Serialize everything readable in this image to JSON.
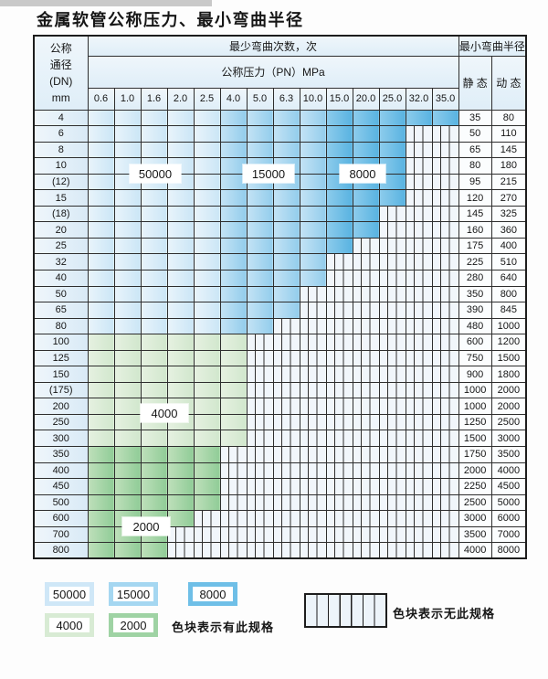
{
  "title": "金属软管公称压力、最小弯曲半径",
  "table": {
    "header": {
      "dn_lines": [
        "公称",
        "通径",
        "(DN)",
        "mm"
      ],
      "bend_cycles": "最少弯曲次数，次",
      "pressure": "公称压力（PN）MPa",
      "min_bend_radius": "最小弯曲半径",
      "static_label": "静 态",
      "dynamic_label": "动 态",
      "pressure_values": [
        "0.6",
        "1.0",
        "1.6",
        "2.0",
        "2.5",
        "4.0",
        "5.0",
        "6.3",
        "10.0",
        "15.0",
        "20.0",
        "25.0",
        "32.0",
        "35.0"
      ]
    },
    "rows": [
      {
        "dn": "4",
        "static": "35",
        "dynamic": "80",
        "cells": [
          "50000",
          "50000",
          "50000",
          "50000",
          "50000",
          "15000",
          "15000",
          "15000",
          "15000",
          "8000",
          "8000",
          "8000",
          "8000",
          "8000"
        ]
      },
      {
        "dn": "6",
        "static": "50",
        "dynamic": "110",
        "cells": [
          "50000",
          "50000",
          "50000",
          "50000",
          "50000",
          "15000",
          "15000",
          "15000",
          "15000",
          "8000",
          "8000",
          "8000",
          "",
          ""
        ]
      },
      {
        "dn": "8",
        "static": "65",
        "dynamic": "145",
        "cells": [
          "50000",
          "50000",
          "50000",
          "50000",
          "50000",
          "15000",
          "15000",
          "15000",
          "15000",
          "8000",
          "8000",
          "8000",
          "",
          ""
        ]
      },
      {
        "dn": "10",
        "static": "80",
        "dynamic": "180",
        "cells": [
          "50000",
          "50000",
          "50000",
          "50000",
          "50000",
          "15000",
          "15000",
          "15000",
          "15000",
          "8000",
          "8000",
          "8000",
          "",
          ""
        ]
      },
      {
        "dn": "(12)",
        "static": "95",
        "dynamic": "215",
        "cells": [
          "50000",
          "50000",
          "50000",
          "50000",
          "50000",
          "15000",
          "15000",
          "15000",
          "15000",
          "8000",
          "8000",
          "8000",
          "",
          ""
        ]
      },
      {
        "dn": "15",
        "static": "120",
        "dynamic": "270",
        "cells": [
          "50000",
          "50000",
          "50000",
          "50000",
          "50000",
          "15000",
          "15000",
          "15000",
          "15000",
          "8000",
          "8000",
          "8000",
          "",
          ""
        ]
      },
      {
        "dn": "(18)",
        "static": "145",
        "dynamic": "325",
        "cells": [
          "50000",
          "50000",
          "50000",
          "50000",
          "50000",
          "15000",
          "15000",
          "15000",
          "15000",
          "8000",
          "8000",
          "",
          "",
          ""
        ]
      },
      {
        "dn": "20",
        "static": "160",
        "dynamic": "360",
        "cells": [
          "50000",
          "50000",
          "50000",
          "50000",
          "50000",
          "15000",
          "15000",
          "15000",
          "15000",
          "8000",
          "8000",
          "",
          "",
          ""
        ]
      },
      {
        "dn": "25",
        "static": "175",
        "dynamic": "400",
        "cells": [
          "50000",
          "50000",
          "50000",
          "50000",
          "50000",
          "15000",
          "15000",
          "15000",
          "15000",
          "8000",
          "",
          "",
          "",
          ""
        ]
      },
      {
        "dn": "32",
        "static": "225",
        "dynamic": "510",
        "cells": [
          "50000",
          "50000",
          "50000",
          "50000",
          "50000",
          "15000",
          "15000",
          "15000",
          "15000",
          "",
          "",
          "",
          "",
          ""
        ]
      },
      {
        "dn": "40",
        "static": "280",
        "dynamic": "640",
        "cells": [
          "50000",
          "50000",
          "50000",
          "50000",
          "50000",
          "15000",
          "15000",
          "15000",
          "15000",
          "",
          "",
          "",
          "",
          ""
        ]
      },
      {
        "dn": "50",
        "static": "350",
        "dynamic": "800",
        "cells": [
          "50000",
          "50000",
          "50000",
          "50000",
          "50000",
          "15000",
          "15000",
          "15000",
          "",
          "",
          "",
          "",
          "",
          ""
        ]
      },
      {
        "dn": "65",
        "static": "390",
        "dynamic": "845",
        "cells": [
          "50000",
          "50000",
          "50000",
          "50000",
          "50000",
          "15000",
          "15000",
          "15000",
          "",
          "",
          "",
          "",
          "",
          ""
        ]
      },
      {
        "dn": "80",
        "static": "480",
        "dynamic": "1000",
        "cells": [
          "50000",
          "50000",
          "50000",
          "50000",
          "50000",
          "15000",
          "15000",
          "",
          "",
          "",
          "",
          "",
          "",
          ""
        ]
      },
      {
        "dn": "100",
        "static": "600",
        "dynamic": "1200",
        "cells": [
          "4000",
          "4000",
          "4000",
          "4000",
          "4000",
          "4000",
          "",
          "",
          "",
          "",
          "",
          "",
          "",
          ""
        ]
      },
      {
        "dn": "125",
        "static": "750",
        "dynamic": "1500",
        "cells": [
          "4000",
          "4000",
          "4000",
          "4000",
          "4000",
          "4000",
          "",
          "",
          "",
          "",
          "",
          "",
          "",
          ""
        ]
      },
      {
        "dn": "150",
        "static": "900",
        "dynamic": "1800",
        "cells": [
          "4000",
          "4000",
          "4000",
          "4000",
          "4000",
          "4000",
          "",
          "",
          "",
          "",
          "",
          "",
          "",
          ""
        ]
      },
      {
        "dn": "(175)",
        "static": "1000",
        "dynamic": "2000",
        "cells": [
          "4000",
          "4000",
          "4000",
          "4000",
          "4000",
          "4000",
          "",
          "",
          "",
          "",
          "",
          "",
          "",
          ""
        ]
      },
      {
        "dn": "200",
        "static": "1000",
        "dynamic": "2000",
        "cells": [
          "4000",
          "4000",
          "4000",
          "4000",
          "4000",
          "4000",
          "",
          "",
          "",
          "",
          "",
          "",
          "",
          ""
        ]
      },
      {
        "dn": "250",
        "static": "1250",
        "dynamic": "2500",
        "cells": [
          "4000",
          "4000",
          "4000",
          "4000",
          "4000",
          "4000",
          "",
          "",
          "",
          "",
          "",
          "",
          "",
          ""
        ]
      },
      {
        "dn": "300",
        "static": "1500",
        "dynamic": "3000",
        "cells": [
          "4000",
          "4000",
          "4000",
          "4000",
          "4000",
          "4000",
          "",
          "",
          "",
          "",
          "",
          "",
          "",
          ""
        ]
      },
      {
        "dn": "350",
        "static": "1750",
        "dynamic": "3500",
        "cells": [
          "2000",
          "2000",
          "2000",
          "2000",
          "2000",
          "",
          "",
          "",
          "",
          "",
          "",
          "",
          "",
          ""
        ]
      },
      {
        "dn": "400",
        "static": "2000",
        "dynamic": "4000",
        "cells": [
          "2000",
          "2000",
          "2000",
          "2000",
          "2000",
          "",
          "",
          "",
          "",
          "",
          "",
          "",
          "",
          ""
        ]
      },
      {
        "dn": "450",
        "static": "2250",
        "dynamic": "4500",
        "cells": [
          "2000",
          "2000",
          "2000",
          "2000",
          "2000",
          "",
          "",
          "",
          "",
          "",
          "",
          "",
          "",
          ""
        ]
      },
      {
        "dn": "500",
        "static": "2500",
        "dynamic": "5000",
        "cells": [
          "2000",
          "2000",
          "2000",
          "2000",
          "2000",
          "",
          "",
          "",
          "",
          "",
          "",
          "",
          "",
          ""
        ]
      },
      {
        "dn": "600",
        "static": "3000",
        "dynamic": "6000",
        "cells": [
          "2000",
          "2000",
          "2000",
          "2000",
          "",
          "",
          "",
          "",
          "",
          "",
          "",
          "",
          "",
          ""
        ]
      },
      {
        "dn": "700",
        "static": "3500",
        "dynamic": "7000",
        "cells": [
          "2000",
          "2000",
          "2000",
          "",
          "",
          "",
          "",
          "",
          "",
          "",
          "",
          "",
          "",
          ""
        ]
      },
      {
        "dn": "800",
        "static": "4000",
        "dynamic": "8000",
        "cells": [
          "2000",
          "2000",
          "2000",
          "",
          "",
          "",
          "",
          "",
          "",
          "",
          "",
          "",
          "",
          ""
        ]
      }
    ]
  },
  "overlay_labels": {
    "b50000": "50000",
    "b15000": "15000",
    "b8000": "8000",
    "g4000": "4000",
    "g2000": "2000"
  },
  "legend": {
    "cycle_50000": "50000",
    "cycle_15000": "15000",
    "cycle_8000": "8000",
    "cycle_4000": "4000",
    "cycle_2000": "2000",
    "has_spec_note": "色块表示有此规格",
    "no_spec_note": "色块表示无此规格"
  },
  "colors": {
    "cycle_50000": "#cfe7f7",
    "cycle_15000": "#a5d7f1",
    "cycle_8000": "#6fbfe7",
    "cycle_4000": "#d8ebd4",
    "cycle_2000": "#9fd3a4",
    "no_spec_pattern": "white with vertical dark stripes"
  }
}
